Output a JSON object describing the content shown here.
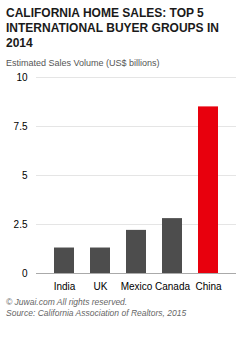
{
  "chart_data": {
    "type": "bar",
    "title": "CALIFORNIA HOME SALES: TOP 5 INTERNATIONAL BUYER GROUPS IN 2014",
    "ylabel": "Estimated Sales Volume (US$ billions)",
    "categories": [
      "India",
      "UK",
      "Mexico",
      "Canada",
      "China"
    ],
    "values": [
      1.3,
      1.3,
      2.2,
      2.8,
      8.5
    ],
    "colors": [
      "#4d4d4d",
      "#4d4d4d",
      "#4d4d4d",
      "#4d4d4d",
      "#e8000d"
    ],
    "ylim": [
      0,
      10
    ],
    "yticks": [
      0,
      2.5,
      5,
      7.5,
      10
    ],
    "grid": true,
    "annotations": [
      "© Juwai.com All rights reserved.",
      "Source: California Association of Realtors, 2015"
    ]
  }
}
